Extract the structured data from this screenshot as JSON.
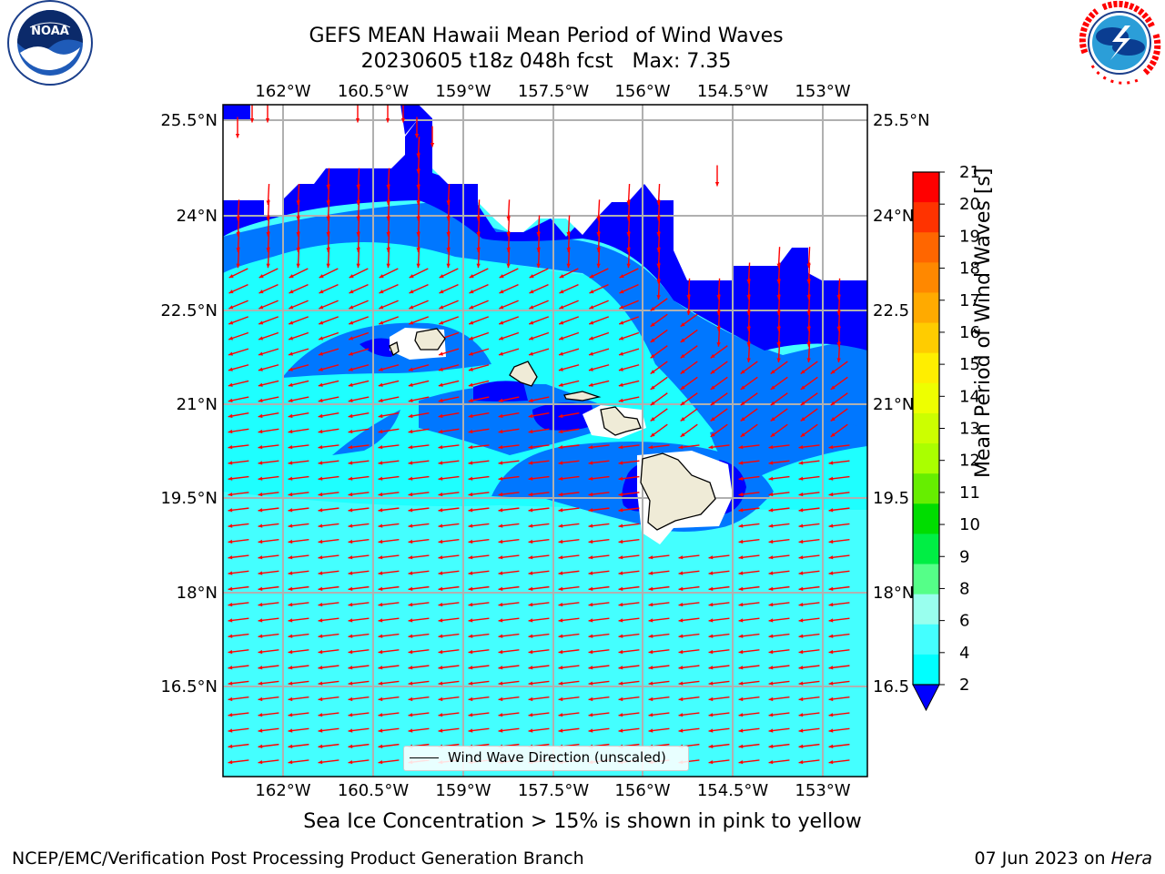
{
  "title": {
    "line1": "GEFS MEAN Hawaii Mean Period of Wind Waves",
    "line2": "20230605 t18z 048h fcst   Max: 7.35"
  },
  "logos": {
    "left": {
      "name": "NOAA",
      "text": "NOAA",
      "ring_text": "NATIONAL OCEANIC AND ATMOSPHERIC ADMINISTRATION · U.S. DEPARTMENT OF COMMERCE"
    },
    "right": {
      "name": "National Weather Service",
      "ring_text": "NATIONAL WEATHER SERVICE"
    }
  },
  "map": {
    "lon_ticks": [
      "162°W",
      "160.5°W",
      "159°W",
      "157.5°W",
      "156°W",
      "154.5°W",
      "153°W"
    ],
    "lat_ticks": [
      "25.5°N",
      "24°N",
      "22.5°N",
      "21°N",
      "19.5°N",
      "18°N",
      "16.5°N"
    ],
    "lat_ticks_right": [
      "25.5°N",
      "24°N",
      "22.5",
      "21°N",
      "19.5",
      "18°N",
      "16.5"
    ],
    "legend_label": "Wind Wave Direction (unscaled)",
    "islands": [
      "Niihau",
      "Kauai",
      "Oahu",
      "Molokai",
      "Maui",
      "Hawaii"
    ],
    "colors": {
      "land": "#efebd7",
      "arrow": "#ff0000",
      "grid": "#b0b0b0"
    }
  },
  "colorbar": {
    "label": "Mean Period of Wind Waves [s]",
    "ticks": [
      "21",
      "20",
      "19",
      "18",
      "17",
      "16",
      "15",
      "14",
      "13",
      "12",
      "11",
      "10",
      "9",
      "8",
      "6",
      "4",
      "2"
    ],
    "colors": [
      "#ff0000",
      "#ff3300",
      "#ff6600",
      "#ff8800",
      "#ffaa00",
      "#ffcc00",
      "#ffee00",
      "#eeff00",
      "#ccff00",
      "#aaff00",
      "#66ee00",
      "#00dd00",
      "#00ee44",
      "#55ff88",
      "#99ffee",
      "#44ffff",
      "#00ffff",
      "#0077ff"
    ],
    "underflow_color": "#0000ff"
  },
  "caption": "Sea Ice Concentration > 15% is shown in pink to yellow",
  "footer": {
    "left": "NCEP/EMC/Verification Post Processing Product Generation Branch",
    "right_prefix": "07 Jun 2023 on ",
    "right_host": "Hera"
  }
}
